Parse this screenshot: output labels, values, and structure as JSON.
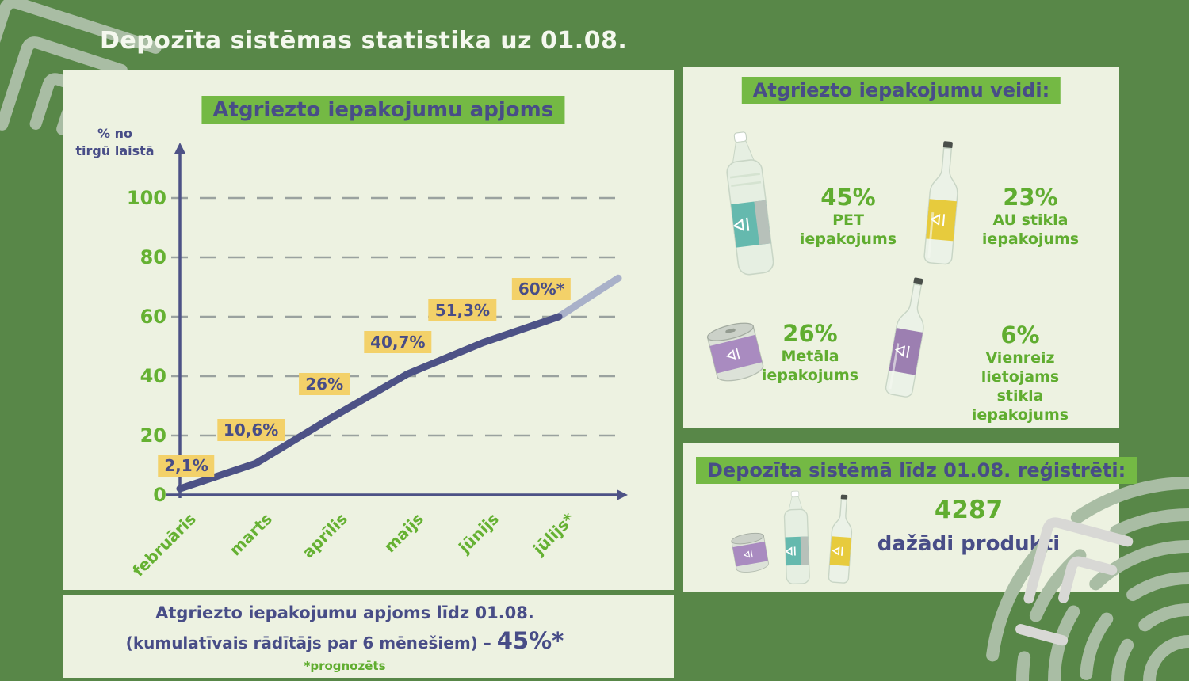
{
  "page_title": "Depozīta sistēmas statistika uz 01.08.",
  "chart": {
    "title": "Atgriezto iepakojumu apjoms",
    "y_axis_label": "% no\ntirgū laistā"
  },
  "chart_data": {
    "type": "line",
    "title": "Atgriezto iepakojumu apjoms",
    "ylabel": "% no tirgū laistā",
    "categories": [
      "februāris",
      "marts",
      "aprīlis",
      "maijs",
      "jūnijs",
      "jūlijs*"
    ],
    "values": [
      2.1,
      10.6,
      26,
      40.7,
      51.3,
      60
    ],
    "value_labels": [
      "2,1%",
      "10,6%",
      "26%",
      "40,7%",
      "51,3%",
      "60%*"
    ],
    "ylim": [
      0,
      100
    ],
    "yticks": [
      0,
      20,
      40,
      60,
      80,
      100
    ],
    "grid": "dashed-horizontal",
    "legend": "none",
    "forecast_tail_end_value": 73,
    "line_color": "#4d5286",
    "forecast_color": "#a9b1c9",
    "value_label_bg": "#f3d169"
  },
  "summary": {
    "line1": "Atgriezto iepakojumu apjoms līdz 01.08.",
    "line2": "(kumulatīvais rādītājs par 6 mēnešiem) – ",
    "value": "45%*",
    "footnote": "*prognozēts"
  },
  "types": {
    "title": "Atgriezto iepakojumu veidi:",
    "items": [
      {
        "pct": "45%",
        "label": "PET\niepakojums",
        "image": "pet-bottle",
        "label_color": "#65b9ae"
      },
      {
        "pct": "23%",
        "label": "AU stikla\niepakojums",
        "image": "glass-bottle",
        "label_color": "#e7cb3d"
      },
      {
        "pct": "26%",
        "label": "Metāla\niepakojums",
        "image": "metal-can",
        "label_color": "#a98bc0"
      },
      {
        "pct": "6%",
        "label": "Vienreiz lietojams\nstikla iepakojums",
        "image": "glass-bottle",
        "label_color": "#9c7fb1"
      }
    ]
  },
  "registered": {
    "title": "Depozīta sistēmā līdz 01.08. reģistrēti:",
    "count": "4287",
    "count_label": "dažādi produkti"
  },
  "colors": {
    "background_green": "#588748",
    "panel_light": "#edf2e1",
    "highlight_green": "#74b944",
    "text_green": "#60ad30",
    "tick_green": "#65b132",
    "dark_blue": "#484d87",
    "line_blue": "#4d5286",
    "forecast_gray": "#a9b1c9",
    "value_badge_yellow": "#f3d169",
    "deco_sage": "#a9bda4",
    "deco_gray": "#d8d8d5"
  }
}
